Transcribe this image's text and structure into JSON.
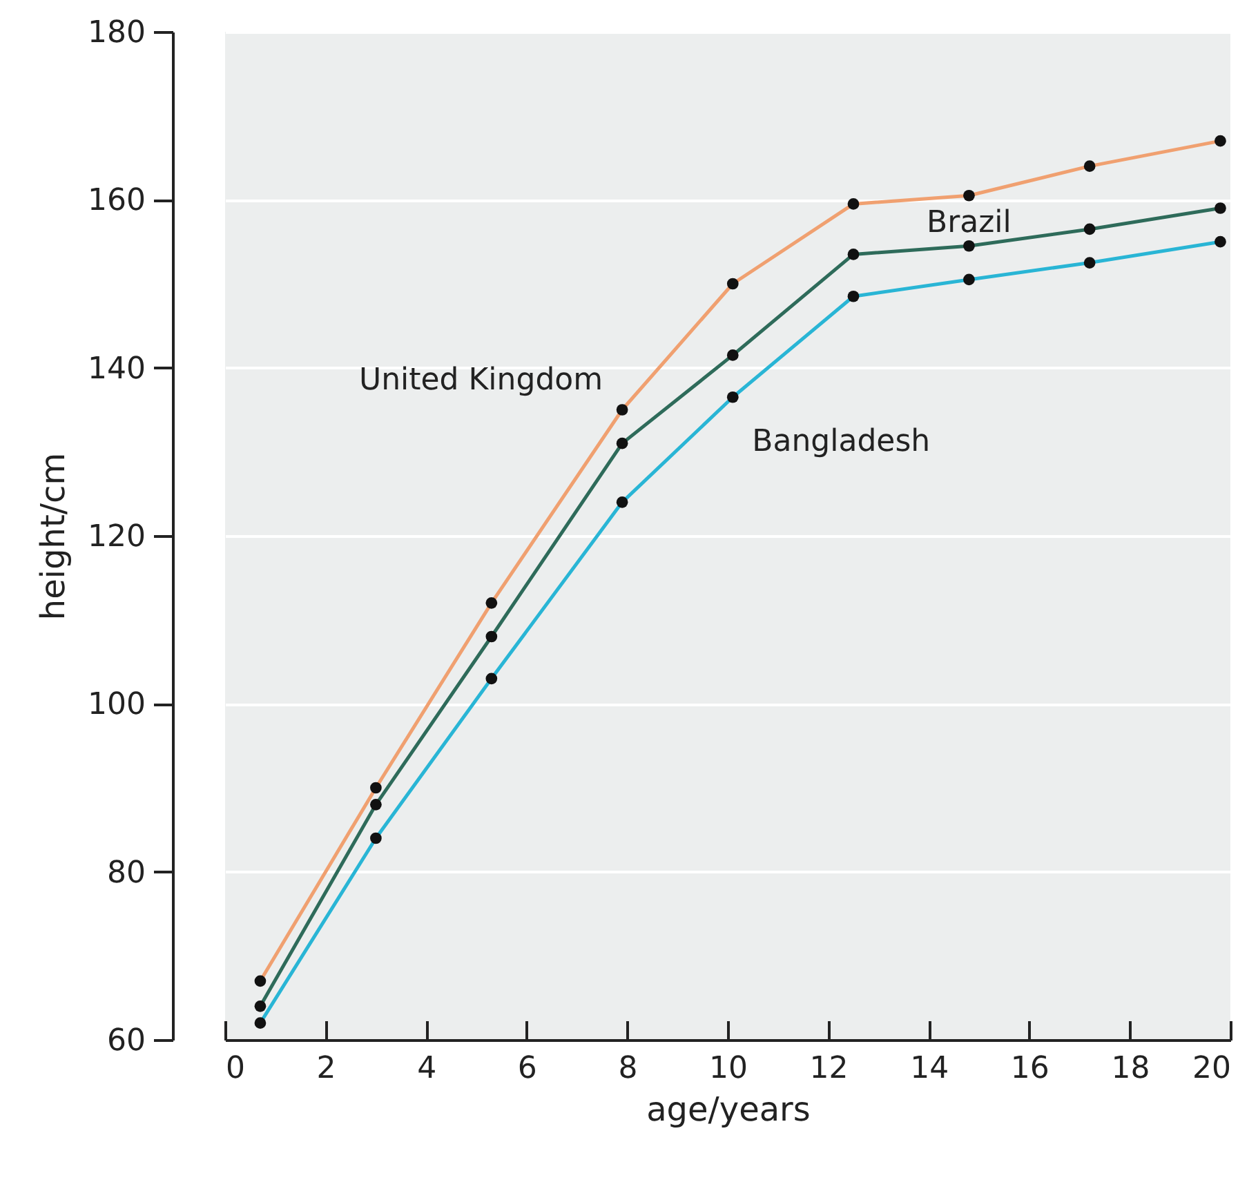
{
  "chart_data": {
    "type": "line",
    "xlabel": "age/years",
    "ylabel": "height/cm",
    "x": [
      0.7,
      3.0,
      5.3,
      7.9,
      10.1,
      12.5,
      14.8,
      17.2,
      19.8
    ],
    "series": [
      {
        "name": "United Kingdom",
        "color": "#f0a070",
        "values": [
          67,
          90,
          112,
          135,
          150,
          159.5,
          160.5,
          164,
          167
        ]
      },
      {
        "name": "Brazil",
        "color": "#2e6b5a",
        "values": [
          64,
          88,
          108,
          131,
          141.5,
          153.5,
          154.5,
          156.5,
          159
        ]
      },
      {
        "name": "Bangladesh",
        "color": "#29b5d5",
        "values": [
          62,
          84,
          103,
          124,
          136.5,
          148.5,
          150.5,
          152.5,
          155
        ]
      }
    ],
    "xlim": [
      0,
      20
    ],
    "xticks": [
      0,
      2,
      4,
      6,
      8,
      10,
      12,
      14,
      16,
      18,
      20
    ],
    "ylim": [
      60,
      180
    ],
    "yticks": [
      60,
      80,
      100,
      120,
      140,
      160,
      180
    ],
    "grid": "y",
    "marker": "circle",
    "line_style": "solid",
    "legend": false
  }
}
